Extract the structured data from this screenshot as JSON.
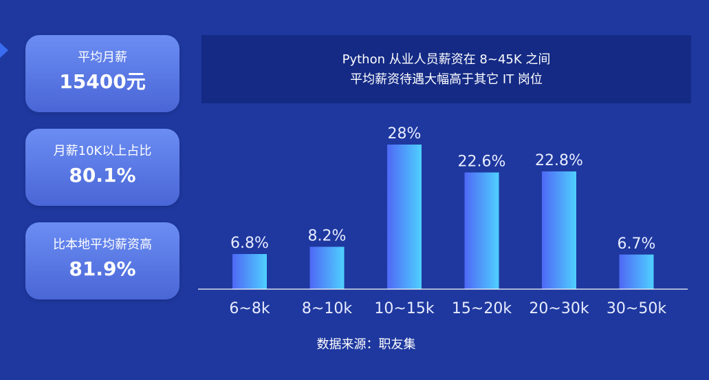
{
  "stats": [
    {
      "label": "平均月薪",
      "value": "15400元"
    },
    {
      "label": "月薪10K以上占比",
      "value": "80.1%"
    },
    {
      "label": "比本地平均薪资高",
      "value": "81.9%"
    }
  ],
  "headline": {
    "line1": "Python 从业人员薪资在 8~45K 之间",
    "line2": "平均薪资待遇大幅高于其它 IT 岗位"
  },
  "chart_data": {
    "type": "bar",
    "categories": [
      "6~8k",
      "8~10k",
      "10~15k",
      "15~20k",
      "20~30k",
      "30~50k"
    ],
    "values": [
      6.8,
      8.2,
      28,
      22.6,
      22.8,
      6.7
    ],
    "data_labels": [
      "6.8%",
      "8.2%",
      "28%",
      "22.6%",
      "22.8%",
      "6.7%"
    ],
    "ylim": [
      0,
      30
    ],
    "grid": false,
    "bar_gradient": [
      "#4f68f5",
      "#4fd0ff"
    ]
  },
  "source": "数据来源：职友集"
}
